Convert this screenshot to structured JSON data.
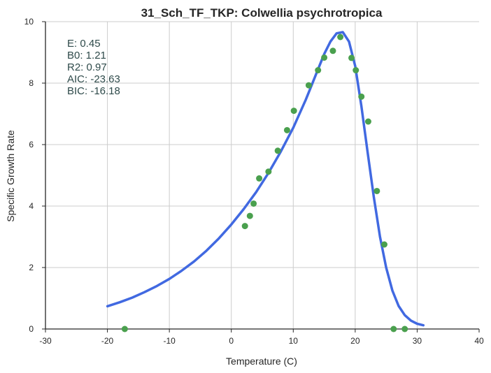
{
  "chart_data": {
    "type": "scatter",
    "title": "31_Sch_TF_TKP: Colwellia psychrotropica",
    "xlabel": "Temperature (C)",
    "ylabel": "Specific Growth Rate",
    "xlim": [
      -30,
      40
    ],
    "ylim": [
      0,
      10
    ],
    "x_ticks": [
      -30,
      -20,
      -10,
      0,
      10,
      20,
      30,
      40
    ],
    "y_ticks": [
      0,
      2,
      4,
      6,
      8,
      10
    ],
    "grid": true,
    "annotation_lines": [
      "E:  0.45",
      "B0:  1.21",
      "R2:  0.97",
      "AIC: -23.63",
      "BIC: -16.18"
    ],
    "colors": {
      "points": "#4aa04e",
      "fit": "#4169e1",
      "annotation": "#2e4a4a"
    },
    "series": [
      {
        "kind": "points",
        "x": [
          -17.2,
          2.2,
          3.0,
          3.6,
          4.5,
          6.0,
          7.5,
          9.0,
          10.1,
          12.5,
          14.0,
          15.0,
          16.4,
          17.6,
          19.4,
          20.1,
          21.0,
          22.1,
          23.5,
          24.7,
          26.2,
          28.0
        ],
        "y": [
          0.0,
          3.35,
          3.68,
          4.08,
          4.9,
          5.12,
          5.8,
          6.47,
          7.1,
          7.93,
          8.42,
          8.83,
          9.05,
          9.5,
          8.82,
          8.42,
          7.56,
          6.75,
          4.49,
          2.75,
          0.0,
          0.0
        ]
      },
      {
        "kind": "fit",
        "x": [
          -20,
          -18,
          -16,
          -14,
          -12,
          -10,
          -8,
          -6,
          -4,
          -2,
          0,
          2,
          4,
          6,
          8,
          10,
          12,
          13,
          14,
          15,
          16,
          17,
          18,
          19,
          20,
          21,
          22,
          23,
          24,
          25,
          26,
          27,
          28,
          29,
          30,
          31
        ],
        "y": [
          0.74,
          0.87,
          1.02,
          1.2,
          1.4,
          1.63,
          1.9,
          2.2,
          2.55,
          2.95,
          3.4,
          3.9,
          4.45,
          5.08,
          5.78,
          6.55,
          7.45,
          7.95,
          8.45,
          8.95,
          9.35,
          9.62,
          9.66,
          9.35,
          8.55,
          7.25,
          5.75,
          4.3,
          3.0,
          2.0,
          1.25,
          0.75,
          0.45,
          0.27,
          0.17,
          0.12
        ]
      }
    ]
  }
}
